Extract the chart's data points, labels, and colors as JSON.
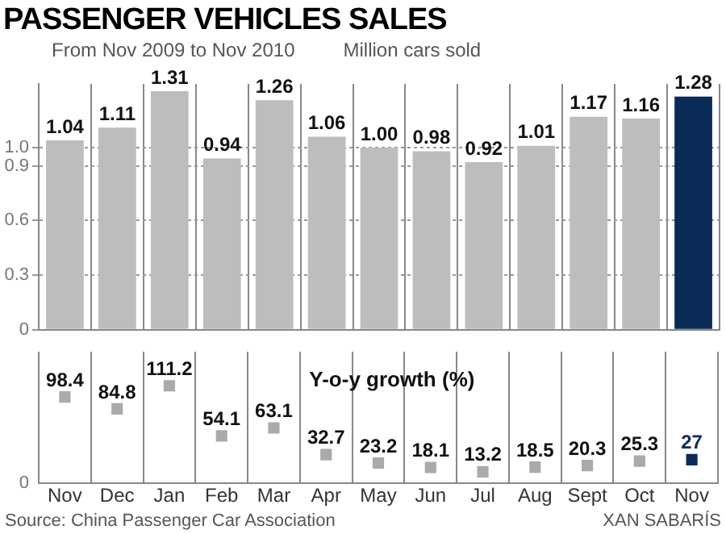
{
  "chart_data": [
    {
      "type": "bar",
      "title": "PASSENGER VEHICLES SALES",
      "subtitle": "From Nov 2009 to Nov 2010",
      "ylabel": "Million cars sold",
      "categories": [
        null,
        null,
        null,
        null,
        null,
        null,
        null,
        null,
        null,
        null,
        null,
        null,
        null
      ],
      "values": [
        1.04,
        1.11,
        1.31,
        0.94,
        1.26,
        1.06,
        1.0,
        0.98,
        0.92,
        1.01,
        1.17,
        1.16,
        1.28
      ],
      "colors": [
        "#bdbdbd",
        "#bdbdbd",
        "#bdbdbd",
        "#bdbdbd",
        "#bdbdbd",
        "#bdbdbd",
        "#bdbdbd",
        "#bdbdbd",
        "#bdbdbd",
        "#bdbdbd",
        "#bdbdbd",
        "#bdbdbd",
        "#0b2b57"
      ],
      "ylim": [
        0,
        1.35
      ],
      "yticks": [
        0,
        0.3,
        0.6,
        0.9,
        {
          "value": 1,
          "label": "1.0"
        }
      ],
      "value_labels": [
        "1.04",
        "1.11",
        "1.31",
        "0.94",
        "1.26",
        "1.06",
        "1.00",
        "0.98",
        "0.92",
        "1.01",
        "1.17",
        "1.16",
        "1.28"
      ],
      "grid": true,
      "tick_labels": "y"
    },
    {
      "type": "scatter",
      "title": "Y-o-y growth (%)",
      "marker": "square",
      "categories": [
        "Nov",
        "Dec",
        "Jan",
        "Feb",
        "Mar",
        "Apr",
        "May",
        "Jun",
        "Jul",
        "Aug",
        "Sept",
        "Oct",
        "Nov"
      ],
      "values": [
        98.4,
        84.8,
        111.2,
        54.1,
        63.1,
        32.7,
        23.2,
        18.1,
        13.2,
        18.5,
        20.3,
        25.3,
        27
      ],
      "colors": [
        "#aaaaaa",
        "#aaaaaa",
        "#aaaaaa",
        "#aaaaaa",
        "#aaaaaa",
        "#aaaaaa",
        "#aaaaaa",
        "#aaaaaa",
        "#aaaaaa",
        "#aaaaaa",
        "#aaaaaa",
        "#aaaaaa",
        "#0b2b57"
      ],
      "grid": "x",
      "data_labels": true,
      "annotations": [
        "0",
        "Source: China Passenger Car Association",
        "XAN SABARÍS"
      ]
    }
  ]
}
